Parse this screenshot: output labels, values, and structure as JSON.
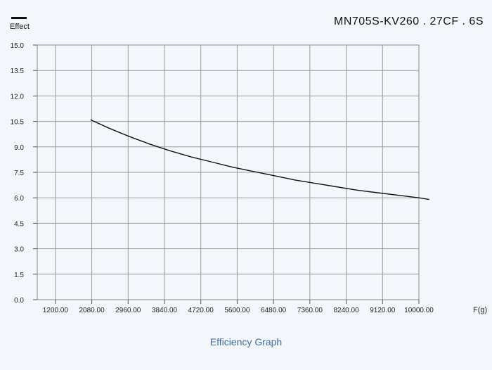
{
  "header": {
    "legend_label": "Effect",
    "model": "MN705S-KV260 . 27CF . 6S"
  },
  "caption": "Efficiency Graph",
  "chart_data": {
    "type": "line",
    "title": "Efficiency Graph",
    "xlabel": "F(g)",
    "ylabel": "Effect",
    "legend": [
      "Effect"
    ],
    "line_color": "#111111",
    "grid": true,
    "xlim": [
      760,
      10000
    ],
    "ylim": [
      0,
      15
    ],
    "x_ticks": [
      "1200.00",
      "2080.00",
      "2960.00",
      "3840.00",
      "4720.00",
      "5600.00",
      "6480.00",
      "7360.00",
      "8240.00",
      "9120.00",
      "10000.00"
    ],
    "y_ticks": [
      "0.0",
      "1.5",
      "3.0",
      "4.5",
      "6.0",
      "7.5",
      "9.0",
      "10.5",
      "12.0",
      "13.5",
      "15.0"
    ],
    "series": [
      {
        "x": [
          2050,
          2500,
          3000,
          3500,
          4000,
          4500,
          5000,
          5500,
          6000,
          6500,
          7000,
          7500,
          8000,
          8500,
          9000,
          9500,
          10000,
          10250
        ],
        "y": [
          10.6,
          10.1,
          9.6,
          9.15,
          8.75,
          8.4,
          8.1,
          7.8,
          7.55,
          7.3,
          7.05,
          6.85,
          6.65,
          6.45,
          6.3,
          6.15,
          6.0,
          5.9
        ]
      }
    ]
  }
}
